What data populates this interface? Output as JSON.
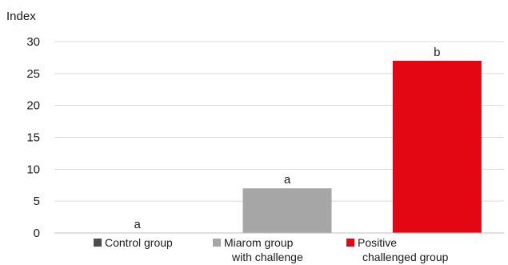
{
  "chart_data": {
    "type": "bar",
    "ylabel": "Index",
    "ylim": [
      0,
      30
    ],
    "yticks": [
      0,
      5,
      10,
      15,
      20,
      25,
      30
    ],
    "grid": true,
    "categories": [
      "Control group",
      "Miarom group with challenge",
      "Positive challenged group"
    ],
    "legend_lines": [
      [
        "Control group"
      ],
      [
        "Miarom group",
        "with challenge"
      ],
      [
        "Positive",
        "challenged group"
      ]
    ],
    "values": [
      0,
      7,
      27
    ],
    "bar_labels": [
      "a",
      "a",
      "b"
    ],
    "colors": [
      "#4d4d4d",
      "#a6a6a6",
      "#e30613"
    ],
    "legend_position": "bottom"
  }
}
